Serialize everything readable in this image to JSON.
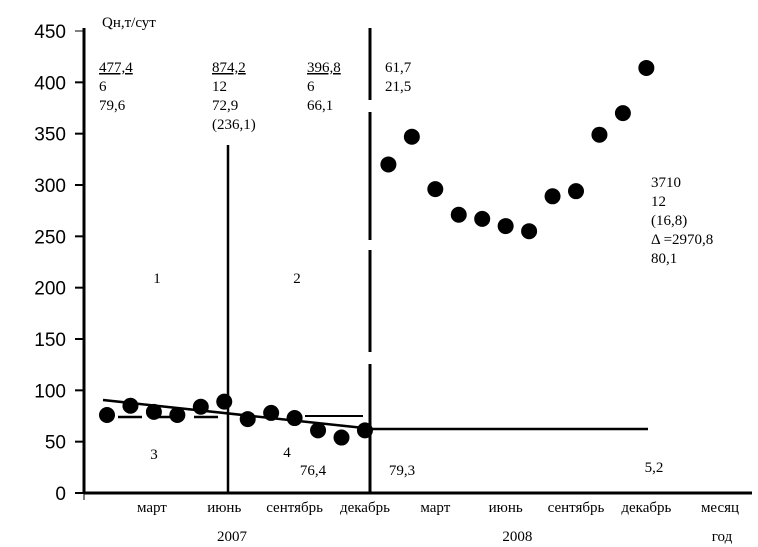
{
  "chart_data": {
    "type": "scatter",
    "ylabel": "Qн,т/сут",
    "xlabel_month": "месяц",
    "xlabel_year": "год",
    "ylim": [
      0,
      450
    ],
    "yticks": [
      "0",
      "50",
      "100",
      "150",
      "200",
      "250",
      "300",
      "350",
      "400",
      "450"
    ],
    "month_labels": [
      {
        "month": 3,
        "label": "март"
      },
      {
        "month": 6,
        "label": "июнь"
      },
      {
        "month": 9,
        "label": "сентябрь"
      },
      {
        "month": 12,
        "label": "декабрь"
      },
      {
        "month": 15,
        "label": "март"
      },
      {
        "month": 18,
        "label": "июнь"
      },
      {
        "month": 21,
        "label": "сентябрь"
      },
      {
        "month": 24,
        "label": "декабрь"
      }
    ],
    "years": [
      {
        "month": 6.5,
        "label": "2007"
      },
      {
        "month": 18.5,
        "label": "2008"
      }
    ],
    "series": [
      {
        "name": "2007",
        "x": [
          1,
          2,
          3,
          4,
          5,
          6,
          7,
          8,
          9,
          10,
          11,
          12
        ],
        "values": [
          76,
          85,
          79,
          76,
          84,
          89,
          72,
          78,
          73,
          61,
          54,
          61
        ]
      },
      {
        "name": "2008",
        "x": [
          13,
          14,
          15,
          16,
          17,
          18,
          19,
          20,
          21,
          22,
          23,
          24
        ],
        "values": [
          320,
          347,
          296,
          271,
          267,
          260,
          255,
          289,
          294,
          349,
          370,
          414
        ]
      }
    ],
    "annotations": {
      "a1": [
        "477,4",
        "6",
        "79,6"
      ],
      "a2": [
        "874,2",
        "12",
        "72,9",
        "(236,1)"
      ],
      "a3": [
        "396,8",
        "6",
        "66,1"
      ],
      "a4": [
        "61,7",
        "21,5"
      ],
      "a5": [
        "3710",
        "12",
        "(16,8)",
        "Δ =2970,8",
        "80,1"
      ],
      "regions": [
        "1",
        "2",
        "3",
        "4"
      ],
      "bottom": [
        "76,4",
        "79,3",
        "5,2"
      ]
    }
  }
}
